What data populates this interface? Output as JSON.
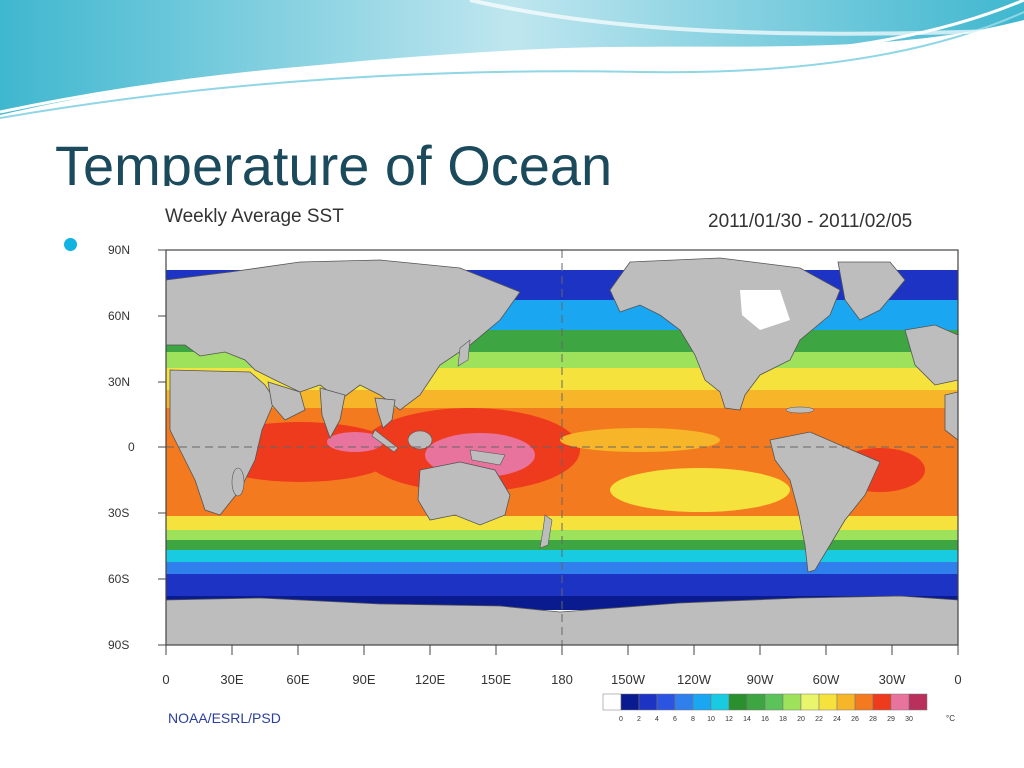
{
  "slide": {
    "title": "Temperature of Ocean",
    "accent_color": "#11b3e3",
    "title_color": "#1b4a5c"
  },
  "figure": {
    "title": "Weekly Average SST",
    "date_range": "2011/01/30 - 2011/02/05",
    "credit": "NOAA/ESRL/PSD",
    "lat_labels": [
      "90N",
      "60N",
      "30N",
      "0",
      "30S",
      "60S",
      "90S"
    ],
    "lon_labels": [
      "0",
      "30E",
      "60E",
      "90E",
      "120E",
      "150E",
      "180",
      "150W",
      "120W",
      "90W",
      "60W",
      "30W",
      "0"
    ],
    "colorbar": {
      "ticks": [
        "0",
        "2",
        "4",
        "6",
        "8",
        "10",
        "12",
        "14",
        "16",
        "18",
        "20",
        "22",
        "24",
        "26",
        "28",
        "29",
        "30"
      ],
      "unit": "°C",
      "colors": [
        "#ffffff",
        "#0a1b8f",
        "#1d33c4",
        "#2b55e0",
        "#2f7fec",
        "#1aa6f0",
        "#19cbe0",
        "#2c8f2e",
        "#3da542",
        "#5cc25a",
        "#9ee15a",
        "#e9f56a",
        "#f6e23c",
        "#f7b52a",
        "#f47a1f",
        "#ee3b1e",
        "#e8739c",
        "#b9305c"
      ]
    }
  }
}
